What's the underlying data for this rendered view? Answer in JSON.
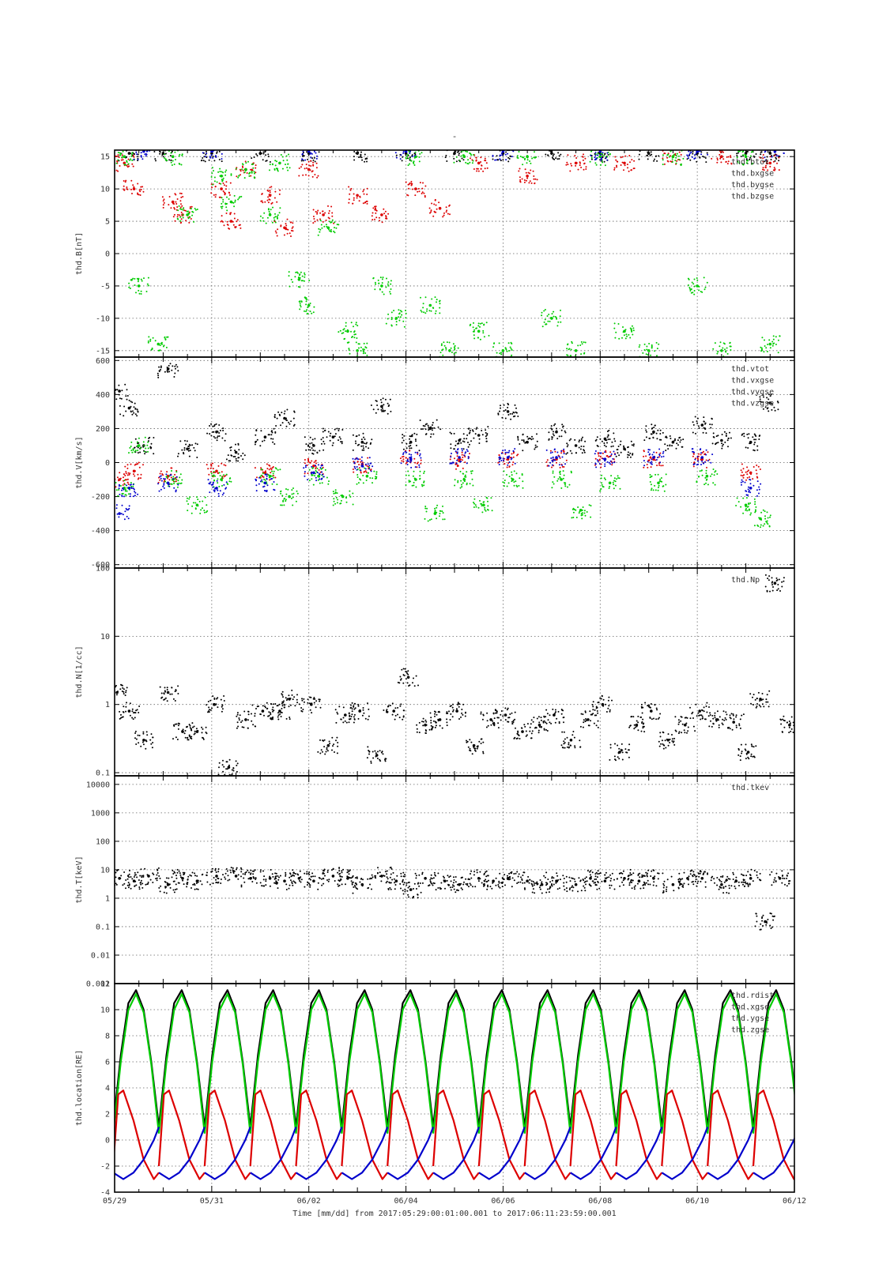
{
  "page": {
    "title_mark": "-",
    "time_axis_label": "Time [mm/dd]  from 2017:05:29:00:01:00.001  to  2017:06:11:23:59:00.001",
    "date_tick_labels": [
      "05/29",
      "05/31",
      "06/02",
      "06/04",
      "06/06",
      "06/08",
      "06/10",
      "06/12"
    ]
  },
  "colors": {
    "black": "#000000",
    "red": "#dd0000",
    "green": "#00cc00",
    "blue": "#0000cc",
    "grid": "#666666"
  },
  "chart_data": [
    {
      "type": "scatter",
      "ylabel": "thd.B[nT]",
      "ylim": [
        -16,
        16
      ],
      "yticks": [
        -15,
        -10,
        -5,
        0,
        5,
        10,
        15
      ],
      "x_range_days": [
        0,
        14
      ],
      "grid": true,
      "legend_position": "top-right",
      "series": [
        {
          "name": "thd.btot",
          "color": "#000000",
          "x": [
            0.3,
            1.0,
            2.0,
            3.0,
            4.0,
            5.0,
            6.0,
            7.0,
            8.0,
            9.0,
            10.0,
            11.0,
            12.0,
            13.0,
            13.5
          ],
          "y": [
            15.5,
            15.5,
            15.5,
            15.5,
            15.5,
            15.5,
            15.5,
            15.5,
            15.5,
            15.5,
            15.5,
            15.5,
            15.5,
            15.5,
            15.5
          ]
        },
        {
          "name": "thd.bxgse",
          "color": "#dd0000",
          "x": [
            0.2,
            0.4,
            1.2,
            1.4,
            2.2,
            2.4,
            2.7,
            3.2,
            3.5,
            4.0,
            4.3,
            5.0,
            5.5,
            6.2,
            6.7,
            7.5,
            8.5,
            9.5,
            10.5,
            11.5,
            12.5,
            13.5
          ],
          "y": [
            14,
            10,
            8,
            6,
            10,
            5,
            13,
            9,
            4,
            13,
            6,
            9,
            6,
            10,
            7,
            14,
            12,
            14,
            14,
            15,
            15,
            14
          ]
        },
        {
          "name": "thd.bygse",
          "color": "#00cc00",
          "x": [
            0.2,
            0.5,
            0.9,
            1.2,
            1.5,
            2.2,
            2.4,
            2.7,
            3.2,
            3.4,
            3.8,
            4.0,
            4.4,
            4.8,
            5.0,
            5.5,
            5.8,
            6.2,
            6.5,
            6.9,
            7.2,
            7.5,
            8.0,
            8.5,
            9.0,
            9.5,
            10.0,
            10.5,
            11.0,
            11.5,
            12.0,
            12.5,
            13.0,
            13.5
          ],
          "y": [
            15,
            -5,
            -14,
            15,
            6,
            12,
            8,
            13,
            6,
            14,
            -4,
            -8,
            4,
            -12,
            -15,
            -5,
            -10,
            15,
            -8,
            -15,
            15,
            -12,
            -15,
            15,
            -10,
            -15,
            15,
            -12,
            -15,
            15,
            -5,
            -15,
            15,
            -14
          ]
        },
        {
          "name": "thd.bzgse",
          "color": "#0000cc",
          "x": [
            0.6,
            2.0,
            4.0,
            6.0,
            8.0,
            10.0,
            12.0,
            13.6
          ],
          "y": [
            15.8,
            15.8,
            15.8,
            15.8,
            15.8,
            15.8,
            15.8,
            15.8
          ]
        }
      ]
    },
    {
      "type": "scatter",
      "ylabel": "thd.V[km/s]",
      "ylim": [
        -620,
        620
      ],
      "yticks": [
        -600,
        -400,
        -200,
        0,
        200,
        400,
        600
      ],
      "x_range_days": [
        0,
        14
      ],
      "grid": true,
      "legend_position": "top-right",
      "series": [
        {
          "name": "thd.vtot",
          "color": "#000000",
          "x": [
            0.1,
            0.3,
            0.6,
            1.1,
            1.5,
            2.1,
            2.5,
            3.1,
            3.5,
            4.1,
            4.5,
            5.1,
            5.5,
            6.1,
            6.5,
            7.1,
            7.5,
            8.1,
            8.5,
            9.1,
            9.5,
            10.1,
            10.5,
            11.1,
            11.5,
            12.1,
            12.5,
            13.1,
            13.5
          ],
          "y": [
            420,
            320,
            100,
            550,
            80,
            180,
            60,
            150,
            260,
            100,
            150,
            120,
            330,
            120,
            200,
            130,
            160,
            300,
            120,
            180,
            100,
            140,
            80,
            180,
            120,
            220,
            130,
            120,
            350
          ]
        },
        {
          "name": "thd.vxgse",
          "color": "#dd0000",
          "x": [
            0.1,
            0.4,
            1.1,
            2.1,
            3.1,
            4.1,
            5.1,
            6.1,
            7.1,
            8.1,
            9.1,
            10.1,
            11.1,
            12.1,
            13.1
          ],
          "y": [
            -100,
            -50,
            -80,
            -50,
            -60,
            -20,
            -10,
            20,
            10,
            20,
            20,
            20,
            20,
            20,
            -60
          ]
        },
        {
          "name": "thd.vygse",
          "color": "#00cc00",
          "x": [
            0.2,
            0.5,
            1.2,
            1.7,
            2.2,
            3.2,
            3.6,
            4.2,
            4.7,
            5.2,
            6.2,
            6.6,
            7.2,
            7.6,
            8.2,
            9.2,
            9.6,
            10.2,
            11.2,
            12.2,
            13.0,
            13.3
          ],
          "y": [
            -150,
            100,
            -100,
            -250,
            -100,
            -80,
            -200,
            -80,
            -200,
            -80,
            -100,
            -300,
            -100,
            -250,
            -100,
            -100,
            -280,
            -120,
            -120,
            -80,
            -250,
            -330
          ]
        },
        {
          "name": "thd.vzgse",
          "color": "#0000cc",
          "x": [
            0.1,
            0.3,
            1.1,
            2.1,
            3.1,
            4.1,
            5.1,
            6.1,
            7.1,
            8.1,
            9.1,
            10.1,
            11.1,
            12.1,
            13.1
          ],
          "y": [
            -300,
            -150,
            -120,
            -150,
            -120,
            -60,
            -20,
            20,
            30,
            30,
            30,
            20,
            30,
            30,
            -150
          ]
        }
      ]
    },
    {
      "type": "scatter",
      "ylabel": "thd.N[1/cc]",
      "yscale": "log",
      "ylim": [
        0.09,
        100
      ],
      "yticks": [
        0.1,
        1,
        10,
        100
      ],
      "ytick_labels": [
        "0.1",
        "1",
        "10",
        "100"
      ],
      "x_range_days": [
        0,
        14
      ],
      "grid": true,
      "legend_position": "top-right",
      "series": [
        {
          "name": "thd.Np",
          "color": "#000000",
          "x": [
            0.05,
            0.3,
            0.6,
            1.1,
            1.4,
            1.7,
            2.05,
            2.35,
            2.7,
            3.05,
            3.4,
            3.6,
            4.05,
            4.4,
            4.75,
            5.05,
            5.4,
            5.75,
            6.05,
            6.4,
            6.7,
            7.05,
            7.4,
            7.75,
            8.05,
            8.4,
            8.75,
            9.05,
            9.4,
            9.75,
            10.05,
            10.4,
            10.75,
            11.05,
            11.4,
            11.75,
            12.05,
            12.4,
            12.75,
            13.05,
            13.3,
            13.6,
            13.9
          ],
          "y": [
            1.5,
            0.8,
            0.3,
            1.5,
            0.4,
            0.4,
            1.0,
            0.12,
            0.6,
            0.8,
            0.8,
            1.2,
            1.0,
            0.25,
            0.7,
            0.8,
            0.18,
            0.8,
            2.5,
            0.5,
            0.6,
            0.8,
            0.25,
            0.6,
            0.7,
            0.4,
            0.5,
            0.7,
            0.3,
            0.6,
            1.0,
            0.2,
            0.5,
            0.8,
            0.3,
            0.5,
            0.8,
            0.6,
            0.55,
            0.2,
            1.2,
            60,
            0.5
          ]
        }
      ]
    },
    {
      "type": "scatter",
      "ylabel": "thd.T[keV]",
      "yscale": "log",
      "ylim": [
        0.001,
        20000
      ],
      "yticks": [
        0.001,
        0.01,
        0.1,
        1,
        10,
        100,
        1000,
        10000
      ],
      "ytick_labels": [
        "0.001",
        "0.01",
        "0.1",
        "1",
        "10",
        "100",
        "1000",
        "10000"
      ],
      "x_range_days": [
        0,
        14
      ],
      "grid": true,
      "legend_position": "top-right",
      "series": [
        {
          "name": "thd.tkev",
          "color": "#000000",
          "x": [
            0.1,
            0.4,
            0.7,
            1.1,
            1.4,
            1.7,
            2.1,
            2.5,
            2.8,
            3.2,
            3.5,
            3.8,
            4.1,
            4.5,
            4.8,
            5.1,
            5.5,
            5.8,
            6.1,
            6.4,
            6.8,
            7.1,
            7.5,
            7.8,
            8.1,
            8.5,
            8.8,
            9.1,
            9.5,
            9.8,
            10.1,
            10.5,
            10.8,
            11.1,
            11.5,
            11.8,
            12.1,
            12.5,
            12.8,
            13.1,
            13.4,
            13.7
          ],
          "y": [
            5,
            4,
            6,
            3,
            5,
            4,
            6,
            6,
            5,
            5,
            4,
            5,
            4,
            6,
            5,
            3,
            6,
            4,
            2,
            5,
            4,
            3,
            5,
            4,
            5,
            4,
            3,
            4,
            3,
            5,
            4,
            5,
            4,
            5,
            3,
            5,
            5,
            3,
            4,
            5,
            0.15,
            5
          ]
        }
      ]
    },
    {
      "type": "line",
      "ylabel": "thd.location[RE]",
      "ylim": [
        -4,
        12
      ],
      "yticks": [
        -4,
        -2,
        0,
        2,
        4,
        6,
        8,
        10,
        12
      ],
      "x_range_days": [
        0,
        14
      ],
      "orbit_period_days": 0.9417,
      "first_perigee_day": -0.03,
      "grid": true,
      "legend_position": "top-right",
      "series": [
        {
          "name": "thd.rdist",
          "color": "#000000",
          "x": [
            0.0,
            0.15,
            0.3,
            0.45,
            0.6,
            0.75,
            0.9
          ],
          "y": [
            1.0,
            6.5,
            10.5,
            11.5,
            10.0,
            6.0,
            1.0
          ]
        },
        {
          "name": "thd.xgse",
          "color": "#00cc00",
          "x": [
            0.0,
            0.15,
            0.3,
            0.45,
            0.6,
            0.75,
            0.9
          ],
          "y": [
            0.5,
            6.0,
            10.0,
            11.2,
            9.8,
            5.8,
            0.5
          ]
        },
        {
          "name": "thd.ygse",
          "color": "#dd0000",
          "x": [
            0.0,
            0.1,
            0.2,
            0.4,
            0.6,
            0.8,
            0.9
          ],
          "y": [
            -2.0,
            3.5,
            3.8,
            1.5,
            -1.5,
            -3.0,
            -2.5
          ]
        },
        {
          "name": "thd.zgse",
          "color": "#0000cc",
          "x": [
            0.0,
            0.2,
            0.4,
            0.6,
            0.8,
            0.9
          ],
          "y": [
            -2.5,
            -3.0,
            -2.5,
            -1.5,
            0.0,
            1.0
          ]
        }
      ]
    }
  ]
}
